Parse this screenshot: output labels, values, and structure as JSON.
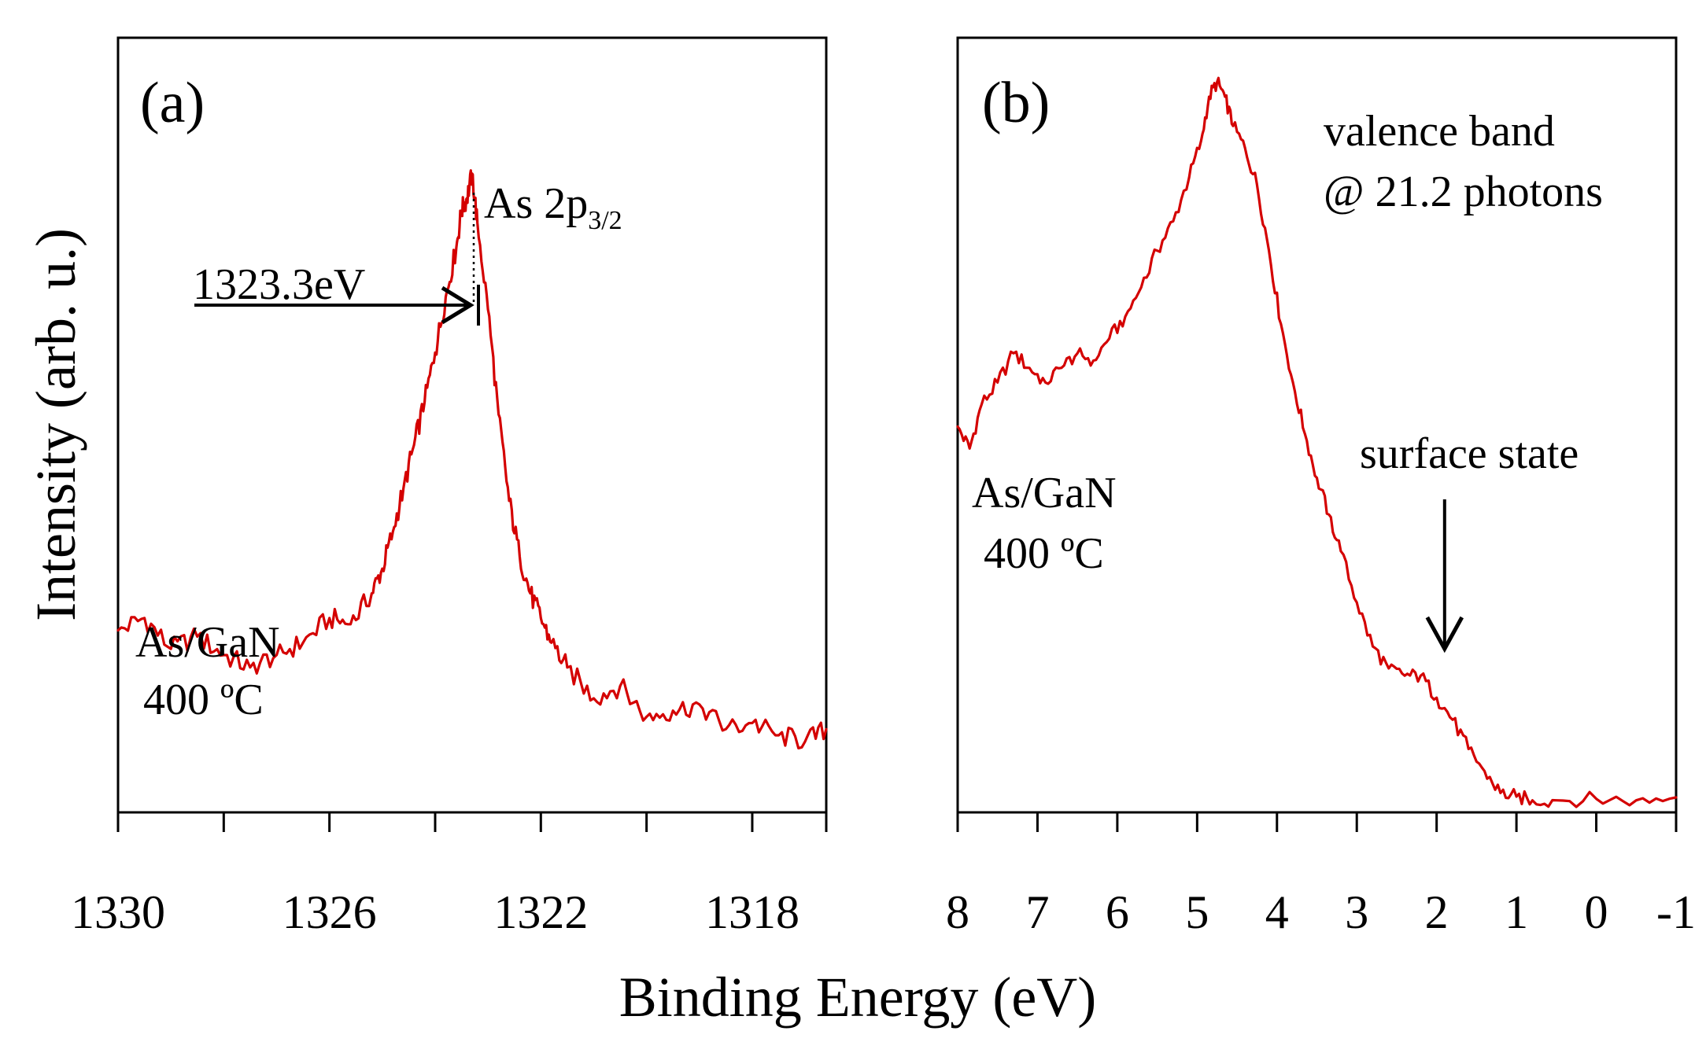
{
  "chart_data": [
    {
      "type": "line",
      "panel_label": "(a)",
      "xlabel": "Binding Energy (eV)",
      "ylabel": "Intensity (arb. u.)",
      "x_reversed": true,
      "xlim": [
        1330,
        1316.6
      ],
      "ylim": [
        0,
        1
      ],
      "x_ticks": [
        1330,
        1328,
        1326,
        1324,
        1322,
        1320,
        1318,
        1316.6
      ],
      "x_tick_labels": [
        "1330",
        "1326",
        "1322",
        "1318"
      ],
      "x_tick_label_values": [
        1330,
        1326,
        1322,
        1318
      ],
      "title": "As 2p",
      "title_sub": "3/2",
      "annotation": "1323.3eV",
      "peak_position": 1323.3,
      "sample_label_line1": "As/GaN",
      "sample_label_line2": "400 ºC",
      "series": [
        {
          "name": "As 2p3/2",
          "color": "#d40000",
          "x": [
            1330.0,
            1329.5,
            1329.0,
            1328.5,
            1328.0,
            1327.5,
            1327.0,
            1326.5,
            1326.0,
            1325.6,
            1325.2,
            1325.0,
            1324.8,
            1324.6,
            1324.4,
            1324.2,
            1324.0,
            1323.8,
            1323.6,
            1323.5,
            1323.4,
            1323.3,
            1323.2,
            1323.0,
            1322.8,
            1322.6,
            1322.4,
            1322.2,
            1322.0,
            1321.8,
            1321.5,
            1321.0,
            1320.5,
            1320.0,
            1319.5,
            1319.0,
            1318.5,
            1318.0,
            1317.5,
            1317.0,
            1316.6
          ],
          "y": [
            0.24,
            0.26,
            0.21,
            0.23,
            0.2,
            0.18,
            0.2,
            0.22,
            0.26,
            0.25,
            0.3,
            0.34,
            0.4,
            0.47,
            0.54,
            0.61,
            0.69,
            0.78,
            0.86,
            0.92,
            0.94,
            0.98,
            0.9,
            0.76,
            0.59,
            0.45,
            0.36,
            0.3,
            0.26,
            0.22,
            0.18,
            0.13,
            0.15,
            0.1,
            0.11,
            0.12,
            0.08,
            0.09,
            0.07,
            0.06,
            0.08
          ]
        }
      ]
    },
    {
      "type": "line",
      "panel_label": "(b)",
      "xlabel": "Binding Energy (eV)",
      "x_reversed": true,
      "xlim": [
        8,
        -1
      ],
      "ylim": [
        0,
        1
      ],
      "x_ticks": [
        8,
        7,
        6,
        5,
        4,
        3,
        2,
        1,
        0,
        -1
      ],
      "x_tick_labels": [
        "8",
        "7",
        "6",
        "5",
        "4",
        "3",
        "2",
        "1",
        "0",
        "-1"
      ],
      "x_tick_label_values": [
        8,
        7,
        6,
        5,
        4,
        3,
        2,
        1,
        0,
        -1
      ],
      "title_line1": "valence band",
      "title_line2": "@ 21.2 photons",
      "annotation": "surface state",
      "annotation_x": 1.9,
      "sample_label_line1": "As/GaN",
      "sample_label_line2": "400 ºC",
      "series": [
        {
          "name": "valence band",
          "color": "#d40000",
          "x": [
            8.0,
            7.85,
            7.7,
            7.5,
            7.3,
            7.1,
            6.9,
            6.7,
            6.5,
            6.3,
            6.1,
            5.9,
            5.7,
            5.5,
            5.3,
            5.1,
            4.95,
            4.85,
            4.75,
            4.65,
            4.55,
            4.4,
            4.25,
            4.1,
            3.95,
            3.8,
            3.65,
            3.5,
            3.35,
            3.2,
            3.0,
            2.8,
            2.6,
            2.4,
            2.2,
            2.0,
            1.8,
            1.6,
            1.4,
            1.2,
            1.0,
            0.8,
            0.5,
            0.0,
            -0.5,
            -1.0
          ],
          "y": [
            0.52,
            0.49,
            0.55,
            0.58,
            0.62,
            0.6,
            0.58,
            0.6,
            0.62,
            0.61,
            0.64,
            0.67,
            0.71,
            0.76,
            0.8,
            0.86,
            0.91,
            0.97,
            0.99,
            0.97,
            0.93,
            0.9,
            0.85,
            0.76,
            0.66,
            0.58,
            0.51,
            0.45,
            0.4,
            0.35,
            0.28,
            0.22,
            0.19,
            0.18,
            0.18,
            0.15,
            0.12,
            0.08,
            0.05,
            0.02,
            0.015,
            0.01,
            0.01,
            0.012,
            0.01,
            0.014
          ]
        }
      ]
    }
  ]
}
